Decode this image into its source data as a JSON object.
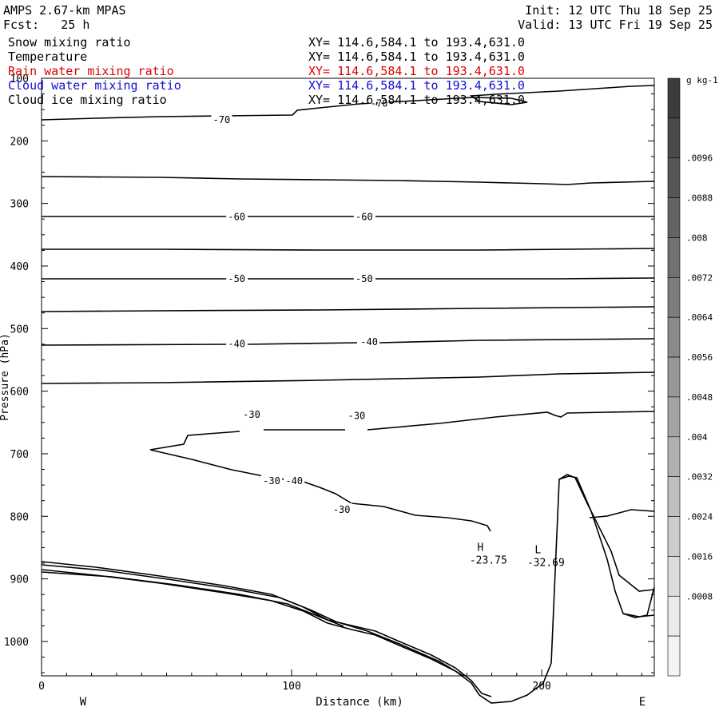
{
  "header": {
    "model": "AMPS 2.67-km MPAS",
    "forecast": "Fcst:   25 h",
    "init": "Init: 12 UTC Thu 18 Sep 25",
    "valid": "Valid: 13 UTC Fri 19 Sep 25"
  },
  "fields": [
    {
      "name": "Snow mixing ratio",
      "xy": "XY= 114.6,584.1 to 193.4,631.0",
      "color": "#000000"
    },
    {
      "name": "Temperature",
      "xy": "XY= 114.6,584.1 to 193.4,631.0",
      "color": "#000000"
    },
    {
      "name": "Rain water mixing ratio",
      "xy": "XY= 114.6,584.1 to 193.4,631.0",
      "color": "#e00000"
    },
    {
      "name": "Cloud water mixing ratio",
      "xy": "XY= 114.6,584.1 to 193.4,631.0",
      "color": "#1010d0"
    },
    {
      "name": "Cloud ice mixing ratio",
      "xy": "XY= 114.6,584.1 to 193.4,631.0",
      "color": "#000000"
    }
  ],
  "chart_data": {
    "type": "contour",
    "xlabel": "Distance (km)",
    "ylabel": "Pressure (hPa)",
    "xlim": [
      0,
      245
    ],
    "ylim": [
      1055,
      100
    ],
    "x_ticks": [
      0,
      100,
      200
    ],
    "y_ticks": [
      100,
      200,
      300,
      400,
      500,
      600,
      700,
      800,
      900,
      1000
    ],
    "x_end_labels": {
      "left": "W",
      "right": "E"
    },
    "contour_labels": [
      {
        "text": "-70",
        "x": 72,
        "p": 165
      },
      {
        "text": "-70",
        "x": 135,
        "p": 139
      },
      {
        "text": "-60",
        "x": 78,
        "p": 320
      },
      {
        "text": "-60",
        "x": 129,
        "p": 320
      },
      {
        "text": "-50",
        "x": 78,
        "p": 419
      },
      {
        "text": "-50",
        "x": 129,
        "p": 419
      },
      {
        "text": "-40",
        "x": 78,
        "p": 523
      },
      {
        "text": "-40",
        "x": 131,
        "p": 520
      },
      {
        "text": "-30",
        "x": 84,
        "p": 636
      },
      {
        "text": "-30",
        "x": 126,
        "p": 638
      },
      {
        "text": "-40",
        "x": 101,
        "p": 742
      },
      {
        "text": "-30",
        "x": 120,
        "p": 788
      },
      {
        "text": "-30",
        "x": 92,
        "p": 742
      }
    ],
    "extrema": [
      {
        "type": "H",
        "value": "-23.75",
        "x": 171,
        "p": 855
      },
      {
        "type": "L",
        "value": "-32.69",
        "x": 194,
        "p": 859
      }
    ],
    "colorbar": {
      "unit": "g kg-1",
      "labels": [
        ".0096",
        ".0088",
        ".008",
        ".0072",
        ".0064",
        ".0056",
        ".0048",
        ".004",
        ".0032",
        ".0024",
        ".0016",
        ".0008"
      ],
      "colors": [
        "#3c3c3c",
        "#4a4a4a",
        "#575757",
        "#646464",
        "#717171",
        "#7d7d7d",
        "#8a8a8a",
        "#979797",
        "#a4a4a4",
        "#b1b1b1",
        "#bfbfbf",
        "#cdcdcd",
        "#dcdcdc",
        "#eaeaea",
        "#f4f4f4"
      ]
    }
  }
}
